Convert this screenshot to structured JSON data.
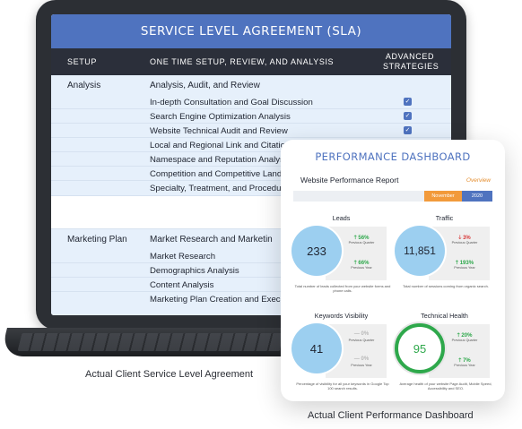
{
  "sla": {
    "title": "SERVICE LEVEL AGREEMENT (SLA)",
    "columns": {
      "setup": "SETUP",
      "description": "ONE TIME SETUP, REVIEW, AND ANALYSIS",
      "advanced_line1": "ADVANCED",
      "advanced_line2": "STRATEGIES"
    },
    "groups": [
      {
        "name": "Analysis",
        "heading": "Analysis, Audit, and Review",
        "items": [
          {
            "label": "In-depth Consultation and Goal Discussion",
            "checked": true
          },
          {
            "label": "Search Engine Optimization Analysis",
            "checked": true
          },
          {
            "label": "Website Technical Audit and Review",
            "checked": true
          },
          {
            "label": "Local and Regional Link and Citation",
            "checked": false
          },
          {
            "label": "Namespace and Reputation Analys",
            "checked": false
          },
          {
            "label": "Competition and Competitive Land",
            "checked": false
          },
          {
            "label": "Specialty, Treatment, and Procedur",
            "checked": false
          }
        ]
      },
      {
        "name": "Marketing Plan",
        "heading": "Market Research and Marketin",
        "items": [
          {
            "label": "Market Research"
          },
          {
            "label": "Demographics Analysis"
          },
          {
            "label": "Content Analysis"
          },
          {
            "label": "Marketing Plan Creation and Execu"
          }
        ]
      }
    ],
    "check_glyph": "✓",
    "accent_color": "#4f73bf"
  },
  "dashboard": {
    "title": "PERFORMANCE DASHBOARD",
    "report_title": "Website Performance Report",
    "overview_label": "Overview",
    "period": {
      "month": "November",
      "year": "2020"
    },
    "metrics": [
      {
        "title": "Leads",
        "value": "233",
        "quarter": {
          "arrow": "🡑",
          "text": "56%",
          "dir": "up",
          "sub": "Previous Quarter"
        },
        "year": {
          "arrow": "🡑",
          "text": "66%",
          "dir": "up",
          "sub": "Previous Year"
        },
        "note": "Total number of leads collected from your website forms and phone calls."
      },
      {
        "title": "Traffic",
        "value": "11,851",
        "quarter": {
          "arrow": "🡓",
          "text": "3%",
          "dir": "down",
          "sub": "Previous Quarter"
        },
        "year": {
          "arrow": "🡑",
          "text": "193%",
          "dir": "up",
          "sub": "Previous Year"
        },
        "note": "Total number of sessions coming from organic search."
      },
      {
        "title": "Keywords Visibility",
        "value": "41",
        "quarter": {
          "arrow": "—",
          "text": "0%",
          "dir": "flat",
          "sub": "Previous Quarter"
        },
        "year": {
          "arrow": "—",
          "text": "0%",
          "dir": "flat",
          "sub": "Previous Year"
        },
        "note": "Percentage of visibility for all your keywords in Google Top 100 search results."
      },
      {
        "title": "Technical Health",
        "value": "95",
        "quarter": {
          "arrow": "🡑",
          "text": "20%",
          "dir": "up",
          "sub": "Previous Quarter"
        },
        "year": {
          "arrow": "🡑",
          "text": "7%",
          "dir": "up",
          "sub": "Previous Year"
        },
        "note": "Average health of your website Page Audit, Mobile Speed, Accessibility and SEO."
      }
    ]
  },
  "captions": {
    "sla": "Actual Client Service Level Agreement",
    "dashboard": "Actual Client Performance Dashboard"
  }
}
